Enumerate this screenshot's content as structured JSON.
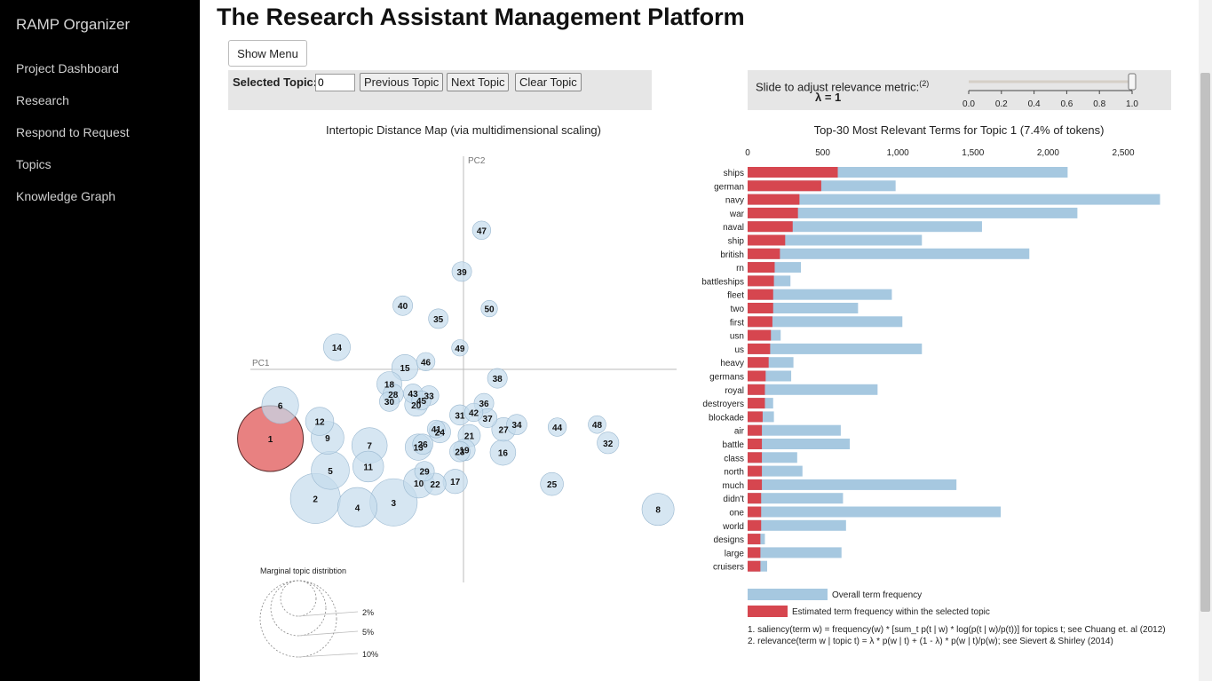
{
  "sidebar": {
    "brand": "RAMP Organizer",
    "items": [
      {
        "label": "Project Dashboard",
        "name": "sidebar-item-project-dashboard"
      },
      {
        "label": "Research",
        "name": "sidebar-item-research"
      },
      {
        "label": "Respond to Request",
        "name": "sidebar-item-respond-to-request"
      },
      {
        "label": "Topics",
        "name": "sidebar-item-topics"
      },
      {
        "label": "Knowledge Graph",
        "name": "sidebar-item-knowledge-graph"
      }
    ]
  },
  "header": {
    "title": "The Research Assistant Management Platform",
    "show_menu_label": "Show Menu"
  },
  "topic_controls": {
    "selected_label": "Selected Topic:",
    "selected_value": "0",
    "prev_label": "Previous Topic",
    "next_label": "Next Topic",
    "clear_label": "Clear Topic"
  },
  "lambda_control": {
    "label": "Slide to adjust relevance metric:",
    "footnote_ref": "(2)",
    "value_label": "λ = 1",
    "value": 1,
    "ticks": [
      "0.0",
      "0.2",
      "0.4",
      "0.6",
      "0.8",
      "1.0"
    ]
  },
  "colors": {
    "overall_bar": "#a6c8e0",
    "topic_bar": "#d6464f",
    "circle": "#c4dbec",
    "selected_circle": "#e57373"
  },
  "chart_data": [
    {
      "type": "scatter",
      "title": "Intertopic Distance Map (via multidimensional scaling)",
      "xlabel": "PC1",
      "ylabel": "PC2",
      "xlim": [
        -1,
        1
      ],
      "ylim": [
        -1,
        1
      ],
      "selected_topic": "1",
      "points": [
        {
          "label": "1",
          "x": -0.906,
          "y": -0.325,
          "size": 1
        },
        {
          "label": "2",
          "x": -0.695,
          "y": -0.606,
          "size": 0.76
        },
        {
          "label": "3",
          "x": -0.328,
          "y": -0.624,
          "size": 0.72
        },
        {
          "label": "4",
          "x": -0.498,
          "y": -0.647,
          "size": 0.6
        },
        {
          "label": "5",
          "x": -0.625,
          "y": -0.474,
          "size": 0.58
        },
        {
          "label": "6",
          "x": -0.86,
          "y": -0.168,
          "size": 0.56
        },
        {
          "label": "7",
          "x": -0.441,
          "y": -0.357,
          "size": 0.54
        },
        {
          "label": "9",
          "x": -0.638,
          "y": -0.321,
          "size": 0.5
        },
        {
          "label": "8",
          "x": 0.913,
          "y": -0.657,
          "size": 0.49
        },
        {
          "label": "11",
          "x": -0.447,
          "y": -0.456,
          "size": 0.47
        },
        {
          "label": "10",
          "x": -0.21,
          "y": -0.533,
          "size": 0.46
        },
        {
          "label": "12",
          "x": -0.675,
          "y": -0.244,
          "size": 0.43
        },
        {
          "label": "13",
          "x": -0.212,
          "y": -0.365,
          "size": 0.4
        },
        {
          "label": "14",
          "x": -0.594,
          "y": 0.104,
          "size": 0.41
        },
        {
          "label": "15",
          "x": -0.275,
          "y": 0.008,
          "size": 0.4
        },
        {
          "label": "16",
          "x": 0.185,
          "y": -0.39,
          "size": 0.39
        },
        {
          "label": "17",
          "x": -0.039,
          "y": -0.526,
          "size": 0.37
        },
        {
          "label": "18",
          "x": -0.348,
          "y": -0.069,
          "size": 0.38
        },
        {
          "label": "19",
          "x": 0.004,
          "y": -0.378,
          "size": 0.33
        },
        {
          "label": "20",
          "x": -0.222,
          "y": -0.166,
          "size": 0.35
        },
        {
          "label": "21",
          "x": 0.027,
          "y": -0.311,
          "size": 0.34
        },
        {
          "label": "22",
          "x": -0.133,
          "y": -0.538,
          "size": 0.33
        },
        {
          "label": "23",
          "x": -0.017,
          "y": -0.386,
          "size": 0.31
        },
        {
          "label": "24",
          "x": -0.111,
          "y": -0.294,
          "size": 0.33
        },
        {
          "label": "25",
          "x": 0.415,
          "y": -0.538,
          "size": 0.35
        },
        {
          "label": "26",
          "x": -0.191,
          "y": -0.351,
          "size": 0.31
        },
        {
          "label": "27",
          "x": 0.188,
          "y": -0.282,
          "size": 0.36
        },
        {
          "label": "28",
          "x": -0.33,
          "y": -0.117,
          "size": 0.31
        },
        {
          "label": "29",
          "x": -0.183,
          "y": -0.478,
          "size": 0.3
        },
        {
          "label": "30",
          "x": -0.348,
          "y": -0.151,
          "size": 0.3
        },
        {
          "label": "31",
          "x": -0.017,
          "y": -0.214,
          "size": 0.31
        },
        {
          "label": "32",
          "x": 0.678,
          "y": -0.345,
          "size": 0.33
        },
        {
          "label": "33",
          "x": -0.162,
          "y": -0.123,
          "size": 0.3
        },
        {
          "label": "34",
          "x": 0.25,
          "y": -0.259,
          "size": 0.31
        },
        {
          "label": "35",
          "x": -0.118,
          "y": 0.238,
          "size": 0.3
        },
        {
          "label": "36",
          "x": 0.096,
          "y": -0.159,
          "size": 0.3
        },
        {
          "label": "37",
          "x": 0.113,
          "y": -0.229,
          "size": 0.29
        },
        {
          "label": "38",
          "x": 0.159,
          "y": -0.042,
          "size": 0.3
        },
        {
          "label": "39",
          "x": -0.008,
          "y": 0.459,
          "size": 0.3
        },
        {
          "label": "40",
          "x": -0.285,
          "y": 0.299,
          "size": 0.3
        },
        {
          "label": "41",
          "x": -0.128,
          "y": -0.28,
          "size": 0.27
        },
        {
          "label": "42",
          "x": 0.048,
          "y": -0.202,
          "size": 0.28
        },
        {
          "label": "43",
          "x": -0.237,
          "y": -0.113,
          "size": 0.29
        },
        {
          "label": "44",
          "x": 0.44,
          "y": -0.271,
          "size": 0.28
        },
        {
          "label": "45",
          "x": -0.198,
          "y": -0.146,
          "size": 0.29
        },
        {
          "label": "46",
          "x": -0.177,
          "y": 0.036,
          "size": 0.28
        },
        {
          "label": "47",
          "x": 0.085,
          "y": 0.653,
          "size": 0.28
        },
        {
          "label": "48",
          "x": 0.627,
          "y": -0.259,
          "size": 0.27
        },
        {
          "label": "49",
          "x": -0.017,
          "y": 0.101,
          "size": 0.25
        },
        {
          "label": "50",
          "x": 0.121,
          "y": 0.285,
          "size": 0.25
        }
      ],
      "size_legend_title": "Marginal topic distribtion",
      "size_legend": [
        "2%",
        "5%",
        "10%"
      ]
    },
    {
      "type": "bar",
      "title": "Top-30 Most Relevant Terms for Topic 1 (7.4% of tokens)",
      "xlim": [
        0,
        2800
      ],
      "ticks": [
        "0",
        "500",
        "1,000",
        "1,500",
        "2,000",
        "2,500"
      ],
      "categories": [
        "ships",
        "german",
        "navy",
        "war",
        "naval",
        "ship",
        "british",
        "rn",
        "battleships",
        "fleet",
        "two",
        "first",
        "usn",
        "us",
        "heavy",
        "germans",
        "royal",
        "destroyers",
        "blockade",
        "air",
        "battle",
        "class",
        "north",
        "much",
        "didn't",
        "one",
        "world",
        "designs",
        "large",
        "cruisers"
      ],
      "series": [
        {
          "name": "Overall term frequency",
          "values": [
            2130,
            985,
            2745,
            2195,
            1560,
            1160,
            1875,
            355,
            285,
            960,
            735,
            1030,
            220,
            1160,
            305,
            290,
            865,
            170,
            175,
            620,
            680,
            330,
            365,
            1390,
            635,
            1685,
            655,
            115,
            625,
            130
          ]
        },
        {
          "name": "Estimated term frequency within the selected topic",
          "values": [
            600,
            490,
            345,
            335,
            300,
            250,
            215,
            180,
            175,
            170,
            170,
            165,
            155,
            150,
            140,
            120,
            115,
            115,
            100,
            95,
            95,
            95,
            95,
            95,
            90,
            90,
            90,
            85,
            85,
            85
          ]
        }
      ]
    }
  ],
  "footnotes": {
    "note1": "1. saliency(term w) = frequency(w) * [sum_t p(t | w) * log(p(t | w)/p(t))] for topics t; see Chuang et. al (2012)",
    "note2": "2. relevance(term w | topic t) = λ * p(w | t) + (1 - λ) * p(w | t)/p(w); see Sievert & Shirley (2014)"
  }
}
